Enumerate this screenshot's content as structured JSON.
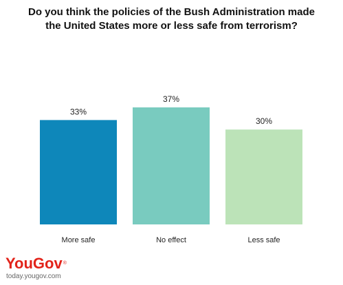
{
  "chart_data": {
    "type": "bar",
    "title_lines": [
      "Do you think the policies of the Bush Administration made",
      "the United States more or less safe from terrorism?"
    ],
    "categories": [
      "More safe",
      "No effect",
      "Less safe"
    ],
    "values": [
      33,
      37,
      30
    ],
    "value_labels": [
      "33%",
      "37%",
      "30%"
    ],
    "colors": [
      "#0e87ba",
      "#79cbbf",
      "#bce3b8"
    ],
    "xlabel": "",
    "ylabel": "",
    "ylim": [
      0,
      37
    ],
    "grid": false,
    "legend": "none"
  },
  "brand": {
    "logo_text": "YouGov",
    "url": "today.yougov.com"
  }
}
